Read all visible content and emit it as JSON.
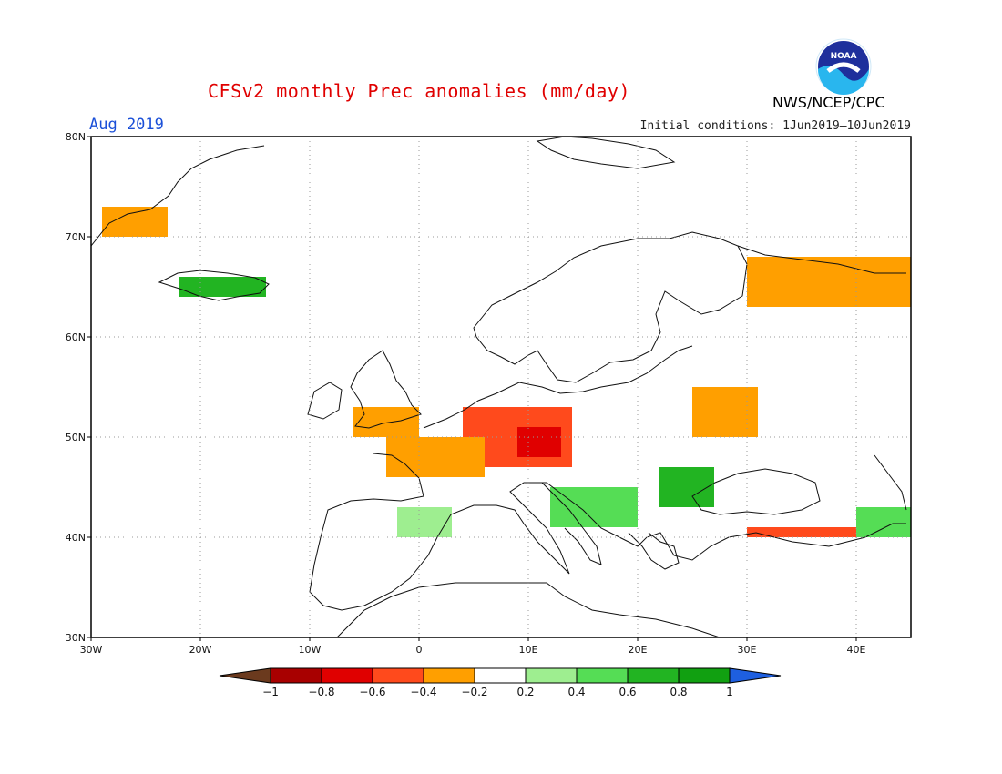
{
  "title": "CFSv2 monthly Prec anomalies (mm/day)",
  "month": "Aug 2019",
  "initial_conditions": "Initial conditions: 1Jun2019–10Jun2019",
  "agency": "NWS/NCEP/CPC",
  "logo_text": "NOAA",
  "map": {
    "lon_range": [
      -30,
      45
    ],
    "lat_range": [
      30,
      80
    ],
    "lon_ticks": [
      "30W",
      "20W",
      "10W",
      "0",
      "10E",
      "20E",
      "30E",
      "40E"
    ],
    "lat_ticks": [
      "80N",
      "70N",
      "60N",
      "50N",
      "40N",
      "30N"
    ],
    "grid": "dotted"
  },
  "colorbar": {
    "labels": [
      "−1",
      "−0.8",
      "−0.6",
      "−0.4",
      "−0.2",
      "0.2",
      "0.4",
      "0.6",
      "0.8",
      "1"
    ],
    "colors": [
      "#6b3a1e",
      "#a80000",
      "#e00000",
      "#ff4a1c",
      "#ff9f00",
      "#ffffff",
      "#9eee90",
      "#55dd55",
      "#22b422",
      "#11a011",
      "#1e5fe0"
    ]
  },
  "anomaly_regions": [
    {
      "name": "central-europe",
      "lon": [
        4,
        14
      ],
      "lat": [
        47,
        53
      ],
      "value": -0.5
    },
    {
      "name": "southern-germany",
      "lon": [
        9,
        13
      ],
      "lat": [
        48,
        51
      ],
      "value": -0.7
    },
    {
      "name": "france",
      "lon": [
        -3,
        6
      ],
      "lat": [
        46,
        50
      ],
      "value": -0.3
    },
    {
      "name": "british-isles",
      "lon": [
        -6,
        0
      ],
      "lat": [
        50,
        53
      ],
      "value": -0.3
    },
    {
      "name": "poland-belarus",
      "lon": [
        25,
        31
      ],
      "lat": [
        50,
        55
      ],
      "value": -0.3
    },
    {
      "name": "northern-russia",
      "lon": [
        30,
        45
      ],
      "lat": [
        63,
        68
      ],
      "value": -0.3
    },
    {
      "name": "greenland-coast",
      "lon": [
        -29,
        -23
      ],
      "lat": [
        70,
        73
      ],
      "value": -0.3
    },
    {
      "name": "iceland",
      "lon": [
        -22,
        -14
      ],
      "lat": [
        64,
        66
      ],
      "value": 0.6
    },
    {
      "name": "romania-balkans",
      "lon": [
        22,
        27
      ],
      "lat": [
        43,
        47
      ],
      "value": 0.6
    },
    {
      "name": "adriatic-italy",
      "lon": [
        12,
        20
      ],
      "lat": [
        41,
        45
      ],
      "value": 0.5
    },
    {
      "name": "spain",
      "lon": [
        -2,
        3
      ],
      "lat": [
        40,
        43
      ],
      "value": 0.3
    },
    {
      "name": "turkey-north",
      "lon": [
        30,
        41
      ],
      "lat": [
        40,
        41
      ],
      "value": -0.5
    },
    {
      "name": "caucasus",
      "lon": [
        40,
        45
      ],
      "lat": [
        40,
        43
      ],
      "value": 0.5
    }
  ]
}
